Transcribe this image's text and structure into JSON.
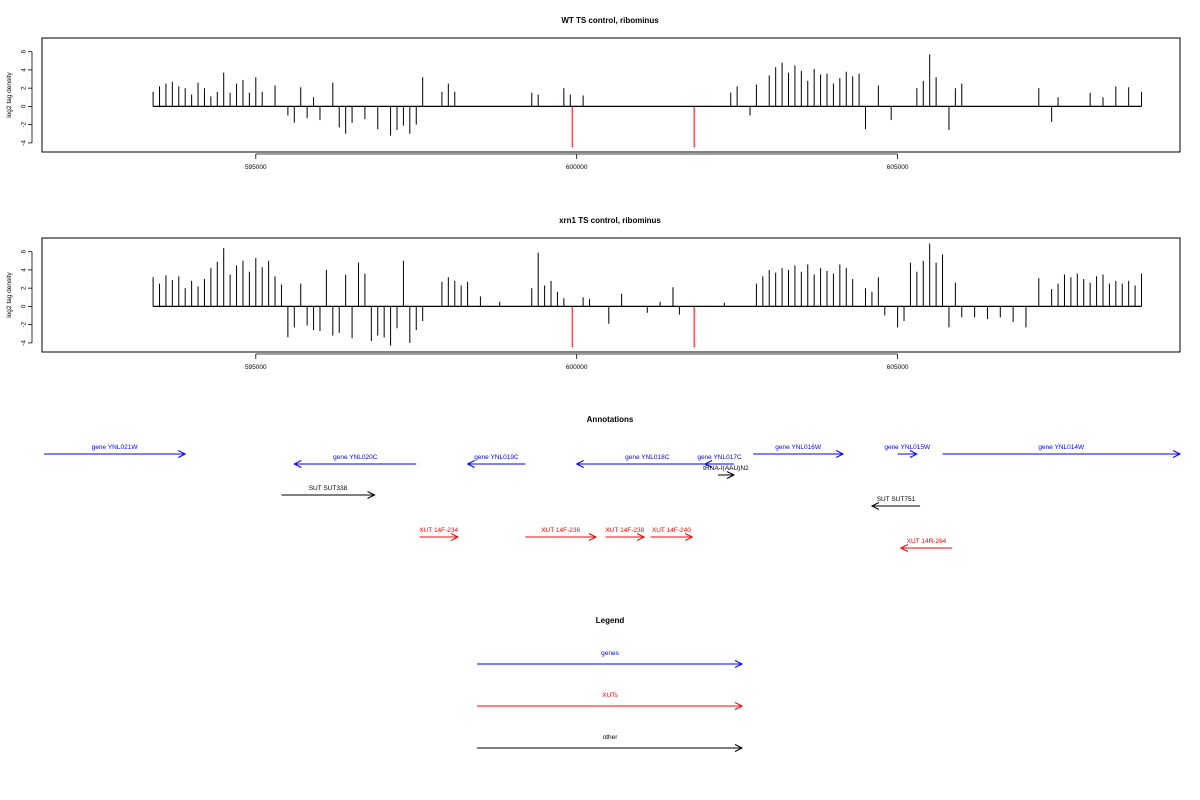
{
  "chart_data": [
    {
      "type": "bar",
      "title": "WT TS control, ribominus",
      "xlabel": "",
      "ylabel": "log2 tag density",
      "xlim": [
        591700,
        609400
      ],
      "ylim": [
        -5,
        7.5
      ],
      "y_ticks": [
        -4,
        -2,
        0,
        2,
        4,
        6
      ],
      "x_ticks": [
        595000,
        600000,
        605000
      ],
      "x_tick_labels": [
        "595000",
        "600000",
        "605000"
      ],
      "y_tick_labels": [
        "-4",
        "-2",
        "0",
        "2",
        "4",
        "6"
      ],
      "colors": {
        "bars": "#000000",
        "highlight": "#ff0000"
      },
      "series": [
        {
          "color": "#000000",
          "values": [
            [
              593400,
              1.6
            ],
            [
              593500,
              2.2
            ],
            [
              593600,
              2.5
            ],
            [
              593700,
              2.7
            ],
            [
              593800,
              2.2
            ],
            [
              593900,
              2.0
            ],
            [
              594000,
              1.3
            ],
            [
              594100,
              2.6
            ],
            [
              594200,
              2.0
            ],
            [
              594300,
              1.1
            ],
            [
              594400,
              1.6
            ],
            [
              594500,
              3.7
            ],
            [
              594600,
              1.5
            ],
            [
              594700,
              2.5
            ],
            [
              594800,
              2.9
            ],
            [
              594900,
              1.5
            ],
            [
              595000,
              3.2
            ],
            [
              595100,
              1.6
            ],
            [
              595300,
              2.3
            ],
            [
              595500,
              -1.0
            ],
            [
              595600,
              -1.8
            ],
            [
              595700,
              2.1
            ],
            [
              595800,
              -1.3
            ],
            [
              595900,
              1.0
            ],
            [
              596000,
              -1.5
            ],
            [
              596200,
              2.6
            ],
            [
              596300,
              -2.3
            ],
            [
              596400,
              -3.0
            ],
            [
              596500,
              -1.8
            ],
            [
              596700,
              -1.4
            ],
            [
              596900,
              -2.5
            ],
            [
              597100,
              -3.2
            ],
            [
              597200,
              -2.6
            ],
            [
              597300,
              -2.1
            ],
            [
              597400,
              -3.0
            ],
            [
              597500,
              -2.0
            ],
            [
              597600,
              3.2
            ],
            [
              597900,
              1.6
            ],
            [
              598000,
              2.5
            ],
            [
              598100,
              1.6
            ],
            [
              599300,
              1.5
            ],
            [
              599400,
              1.3
            ],
            [
              599800,
              2.0
            ],
            [
              599900,
              1.3
            ],
            [
              600100,
              1.2
            ],
            [
              602400,
              1.5
            ],
            [
              602500,
              2.2
            ],
            [
              602700,
              -1.0
            ],
            [
              602800,
              2.4
            ],
            [
              603000,
              3.4
            ],
            [
              603100,
              4.3
            ],
            [
              603200,
              4.8
            ],
            [
              603300,
              3.7
            ],
            [
              603400,
              4.5
            ],
            [
              603500,
              3.9
            ],
            [
              603600,
              2.8
            ],
            [
              603700,
              4.1
            ],
            [
              603800,
              3.5
            ],
            [
              603900,
              3.6
            ],
            [
              604000,
              2.5
            ],
            [
              604100,
              3.1
            ],
            [
              604200,
              3.8
            ],
            [
              604300,
              3.3
            ],
            [
              604400,
              3.6
            ],
            [
              604500,
              -2.5
            ],
            [
              604700,
              2.3
            ],
            [
              604900,
              -1.5
            ],
            [
              605300,
              2.0
            ],
            [
              605400,
              2.8
            ],
            [
              605500,
              5.7
            ],
            [
              605600,
              3.2
            ],
            [
              605800,
              -2.6
            ],
            [
              605900,
              2.0
            ],
            [
              606000,
              2.5
            ],
            [
              607200,
              2.0
            ],
            [
              607400,
              -1.7
            ],
            [
              607500,
              1.0
            ],
            [
              608000,
              1.5
            ],
            [
              608200,
              1.0
            ],
            [
              608400,
              2.2
            ],
            [
              608600,
              2.1
            ],
            [
              608800,
              1.6
            ]
          ]
        },
        {
          "color": "#ff0000",
          "values": [
            [
              599930,
              -4.5
            ],
            [
              601830,
              -4.5
            ]
          ]
        }
      ]
    },
    {
      "type": "bar",
      "title": "xrn1 TS control, ribominus",
      "xlabel": "",
      "ylabel": "log2 tag density",
      "xlim": [
        591700,
        609400
      ],
      "ylim": [
        -5,
        7.5
      ],
      "y_ticks": [
        -4,
        -2,
        0,
        2,
        4,
        6
      ],
      "x_ticks": [
        595000,
        600000,
        605000
      ],
      "x_tick_labels": [
        "595000",
        "600000",
        "605000"
      ],
      "y_tick_labels": [
        "-4",
        "-2",
        "0",
        "2",
        "4",
        "6"
      ],
      "colors": {
        "bars": "#000000",
        "highlight": "#ff0000"
      },
      "series": [
        {
          "color": "#000000",
          "values": [
            [
              593400,
              3.2
            ],
            [
              593500,
              2.5
            ],
            [
              593600,
              3.4
            ],
            [
              593700,
              2.9
            ],
            [
              593800,
              3.3
            ],
            [
              593900,
              2.0
            ],
            [
              594000,
              2.8
            ],
            [
              594100,
              2.2
            ],
            [
              594200,
              3.0
            ],
            [
              594300,
              4.2
            ],
            [
              594400,
              4.9
            ],
            [
              594500,
              6.4
            ],
            [
              594600,
              3.5
            ],
            [
              594700,
              4.5
            ],
            [
              594800,
              5.0
            ],
            [
              594900,
              3.8
            ],
            [
              595000,
              5.3
            ],
            [
              595100,
              4.3
            ],
            [
              595200,
              5.0
            ],
            [
              595300,
              3.3
            ],
            [
              595400,
              2.4
            ],
            [
              595500,
              -3.4
            ],
            [
              595600,
              -2.3
            ],
            [
              595700,
              2.5
            ],
            [
              595800,
              -2.1
            ],
            [
              595900,
              -2.6
            ],
            [
              596000,
              -2.7
            ],
            [
              596100,
              4.0
            ],
            [
              596200,
              -3.2
            ],
            [
              596300,
              -2.9
            ],
            [
              596400,
              3.5
            ],
            [
              596500,
              -3.5
            ],
            [
              596600,
              4.8
            ],
            [
              596700,
              3.6
            ],
            [
              596800,
              -3.8
            ],
            [
              596900,
              -3.2
            ],
            [
              597000,
              -3.4
            ],
            [
              597100,
              -4.3
            ],
            [
              597200,
              -2.4
            ],
            [
              597300,
              5.0
            ],
            [
              597400,
              -4.0
            ],
            [
              597500,
              -2.6
            ],
            [
              597600,
              -1.6
            ],
            [
              597900,
              2.7
            ],
            [
              598000,
              3.2
            ],
            [
              598100,
              2.8
            ],
            [
              598200,
              2.3
            ],
            [
              598300,
              2.7
            ],
            [
              598500,
              1.1
            ],
            [
              598800,
              0.5
            ],
            [
              599300,
              2.0
            ],
            [
              599400,
              5.9
            ],
            [
              599500,
              2.3
            ],
            [
              599600,
              2.8
            ],
            [
              599700,
              1.6
            ],
            [
              599800,
              0.9
            ],
            [
              600100,
              1.0
            ],
            [
              600200,
              0.8
            ],
            [
              600500,
              -1.9
            ],
            [
              600700,
              1.4
            ],
            [
              601100,
              -0.7
            ],
            [
              601300,
              0.5
            ],
            [
              601500,
              2.1
            ],
            [
              601600,
              -0.9
            ],
            [
              602300,
              0.4
            ],
            [
              602800,
              2.5
            ],
            [
              602900,
              3.3
            ],
            [
              603000,
              4.0
            ],
            [
              603100,
              3.7
            ],
            [
              603200,
              4.2
            ],
            [
              603300,
              4.0
            ],
            [
              603400,
              4.5
            ],
            [
              603500,
              3.8
            ],
            [
              603600,
              4.6
            ],
            [
              603700,
              3.5
            ],
            [
              603800,
              4.2
            ],
            [
              603900,
              3.9
            ],
            [
              604000,
              3.6
            ],
            [
              604100,
              4.6
            ],
            [
              604200,
              4.2
            ],
            [
              604300,
              3.0
            ],
            [
              604500,
              2.0
            ],
            [
              604600,
              1.6
            ],
            [
              604700,
              3.2
            ],
            [
              604800,
              -1.0
            ],
            [
              605000,
              -2.3
            ],
            [
              605100,
              -1.6
            ],
            [
              605200,
              4.8
            ],
            [
              605300,
              3.8
            ],
            [
              605400,
              5.0
            ],
            [
              605500,
              6.9
            ],
            [
              605600,
              4.8
            ],
            [
              605700,
              5.7
            ],
            [
              605800,
              -2.3
            ],
            [
              605900,
              2.6
            ],
            [
              606000,
              -1.2
            ],
            [
              606200,
              -1.2
            ],
            [
              606400,
              -1.4
            ],
            [
              606600,
              -1.2
            ],
            [
              606800,
              -1.7
            ],
            [
              607000,
              -2.3
            ],
            [
              607200,
              3.1
            ],
            [
              607400,
              1.9
            ],
            [
              607500,
              2.5
            ],
            [
              607600,
              3.5
            ],
            [
              607700,
              3.2
            ],
            [
              607800,
              3.6
            ],
            [
              607900,
              3.0
            ],
            [
              608000,
              2.6
            ],
            [
              608100,
              3.3
            ],
            [
              608200,
              3.5
            ],
            [
              608300,
              2.5
            ],
            [
              608400,
              2.8
            ],
            [
              608500,
              2.5
            ],
            [
              608600,
              2.8
            ],
            [
              608700,
              2.3
            ],
            [
              608800,
              3.6
            ]
          ]
        },
        {
          "color": "#ff0000",
          "values": [
            [
              599930,
              -4.5
            ],
            [
              601830,
              -4.5
            ]
          ]
        }
      ]
    }
  ],
  "annotations": {
    "title": "Annotations",
    "colors": {
      "gene": "#0000ff",
      "xut": "#ff0000",
      "other": "#000000"
    },
    "features": [
      {
        "label": "gene YNL021W",
        "kind": "gene",
        "start": 591700,
        "end": 593900,
        "strand": "+",
        "row": 0
      },
      {
        "label": "gene YNL020C",
        "kind": "gene",
        "start": 595600,
        "end": 597500,
        "strand": "-",
        "row": 1
      },
      {
        "label": "gene YNL019C",
        "kind": "gene",
        "start": 598300,
        "end": 599200,
        "strand": "-",
        "row": 1
      },
      {
        "label": "gene YNL018C",
        "kind": "gene",
        "start": 600000,
        "end": 602200,
        "strand": "-",
        "row": 1
      },
      {
        "label": "gene YNL017C",
        "kind": "gene",
        "start": 602000,
        "end": 602450,
        "strand": "-",
        "row": 1
      },
      {
        "label": "tRNA-I(AAU)N2",
        "kind": "other",
        "start": 602200,
        "end": 602450,
        "strand": "+",
        "row": 2
      },
      {
        "label": "gene YNL016W",
        "kind": "gene",
        "start": 602750,
        "end": 604150,
        "strand": "+",
        "row": 0
      },
      {
        "label": "gene YNL015W",
        "kind": "gene",
        "start": 605000,
        "end": 605300,
        "strand": "+",
        "row": 0
      },
      {
        "label": "gene YNL014W",
        "kind": "gene",
        "start": 605700,
        "end": 609400,
        "strand": "+",
        "row": 0
      },
      {
        "label": "SUT SUT338",
        "kind": "other",
        "start": 595400,
        "end": 596850,
        "strand": "+",
        "row": 3
      },
      {
        "label": "SUT SUT751",
        "kind": "other",
        "start": 604600,
        "end": 605350,
        "strand": "-",
        "row": 4
      },
      {
        "label": "XUT 14F-234",
        "kind": "xut",
        "start": 597550,
        "end": 598150,
        "strand": "+",
        "row": 5
      },
      {
        "label": "XUT 14F-236",
        "kind": "xut",
        "start": 599200,
        "end": 600300,
        "strand": "+",
        "row": 5
      },
      {
        "label": "XUT 14F-238",
        "kind": "xut",
        "start": 600450,
        "end": 601050,
        "strand": "+",
        "row": 5
      },
      {
        "label": "XUT 14F-240",
        "kind": "xut",
        "start": 601150,
        "end": 601800,
        "strand": "+",
        "row": 5
      },
      {
        "label": "XUT 14R-264",
        "kind": "xut",
        "start": 605050,
        "end": 605850,
        "strand": "-",
        "row": 6
      }
    ]
  },
  "legend": {
    "title": "Legend",
    "items": [
      {
        "label": "genes",
        "color": "#0000ff"
      },
      {
        "label": "XUTs",
        "color": "#ff0000"
      },
      {
        "label": "other",
        "color": "#000000"
      }
    ]
  }
}
